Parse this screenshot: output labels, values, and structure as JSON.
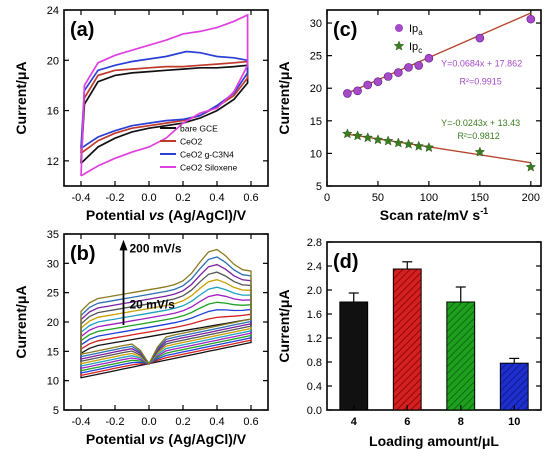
{
  "chart_data": [
    {
      "panel": "(a)",
      "type": "line",
      "xlabel_parts": [
        "Potential ",
        "vs",
        " (Ag/AgCl)/V"
      ],
      "ylabel": "Current/μA",
      "xlim": [
        -0.5,
        0.7
      ],
      "ylim": [
        10,
        24
      ],
      "xticks": [
        -0.4,
        -0.2,
        0.0,
        0.2,
        0.4,
        0.6
      ],
      "yticks": [
        12,
        16,
        20,
        24
      ],
      "legend_position": "bottom-right",
      "series": [
        {
          "name": "bare GCE",
          "color": "#111111",
          "forward": [
            [
              -0.4,
              11.8
            ],
            [
              -0.3,
              13.1
            ],
            [
              -0.2,
              13.8
            ],
            [
              -0.1,
              14.3
            ],
            [
              0.0,
              14.6
            ],
            [
              0.1,
              14.8
            ],
            [
              0.2,
              15.0
            ],
            [
              0.3,
              15.4
            ],
            [
              0.4,
              16.0
            ],
            [
              0.5,
              16.9
            ],
            [
              0.58,
              18.2
            ]
          ],
          "reverse": [
            [
              0.58,
              19.6
            ],
            [
              0.5,
              19.5
            ],
            [
              0.4,
              19.4
            ],
            [
              0.3,
              19.4
            ],
            [
              0.2,
              19.3
            ],
            [
              0.1,
              19.2
            ],
            [
              0.0,
              19.1
            ],
            [
              -0.1,
              19.0
            ],
            [
              -0.2,
              18.8
            ],
            [
              -0.3,
              18.3
            ],
            [
              -0.38,
              16.5
            ],
            [
              -0.4,
              11.8
            ]
          ]
        },
        {
          "name": "CeO2",
          "color": "#c0392b",
          "forward": [
            [
              -0.4,
              12.6
            ],
            [
              -0.3,
              13.6
            ],
            [
              -0.2,
              14.2
            ],
            [
              -0.1,
              14.6
            ],
            [
              0.0,
              14.8
            ],
            [
              0.1,
              15.0
            ],
            [
              0.2,
              15.2
            ],
            [
              0.3,
              15.6
            ],
            [
              0.4,
              16.3
            ],
            [
              0.5,
              17.2
            ],
            [
              0.58,
              18.6
            ]
          ],
          "reverse": [
            [
              0.58,
              19.9
            ],
            [
              0.5,
              19.8
            ],
            [
              0.4,
              19.7
            ],
            [
              0.3,
              19.6
            ],
            [
              0.2,
              19.5
            ],
            [
              0.1,
              19.5
            ],
            [
              0.0,
              19.4
            ],
            [
              -0.1,
              19.3
            ],
            [
              -0.2,
              19.2
            ],
            [
              -0.3,
              18.8
            ],
            [
              -0.38,
              17.0
            ],
            [
              -0.4,
              12.6
            ]
          ]
        },
        {
          "name": "CeO2 g-C3N4",
          "color": "#2b3fd6",
          "forward": [
            [
              -0.4,
              13.0
            ],
            [
              -0.3,
              13.9
            ],
            [
              -0.2,
              14.4
            ],
            [
              -0.1,
              14.8
            ],
            [
              0.0,
              15.0
            ],
            [
              0.1,
              15.2
            ],
            [
              0.2,
              15.3
            ],
            [
              0.3,
              15.6
            ],
            [
              0.4,
              16.4
            ],
            [
              0.5,
              17.4
            ],
            [
              0.58,
              19.0
            ]
          ],
          "reverse": [
            [
              0.58,
              20.0
            ],
            [
              0.5,
              20.2
            ],
            [
              0.4,
              20.3
            ],
            [
              0.3,
              20.6
            ],
            [
              0.22,
              20.7
            ],
            [
              0.1,
              20.3
            ],
            [
              0.0,
              20.1
            ],
            [
              -0.1,
              19.9
            ],
            [
              -0.2,
              19.6
            ],
            [
              -0.3,
              19.2
            ],
            [
              -0.38,
              17.6
            ],
            [
              -0.4,
              13.0
            ]
          ]
        },
        {
          "name": "CeO2 Siloxene",
          "color": "#e040e0",
          "forward": [
            [
              -0.4,
              10.8
            ],
            [
              -0.3,
              11.6
            ],
            [
              -0.2,
              12.2
            ],
            [
              -0.1,
              12.7
            ],
            [
              0.0,
              13.1
            ],
            [
              0.1,
              13.8
            ],
            [
              0.2,
              15.0
            ],
            [
              0.3,
              15.8
            ],
            [
              0.4,
              16.2
            ],
            [
              0.5,
              17.5
            ],
            [
              0.58,
              19.6
            ]
          ],
          "reverse": [
            [
              0.58,
              23.6
            ],
            [
              0.5,
              23.1
            ],
            [
              0.4,
              22.6
            ],
            [
              0.3,
              22.3
            ],
            [
              0.2,
              22.1
            ],
            [
              0.1,
              21.6
            ],
            [
              0.0,
              21.2
            ],
            [
              -0.1,
              20.8
            ],
            [
              -0.2,
              20.4
            ],
            [
              -0.3,
              19.8
            ],
            [
              -0.38,
              18.0
            ],
            [
              -0.4,
              10.8
            ]
          ]
        }
      ]
    },
    {
      "panel": "(b)",
      "type": "line",
      "xlabel_parts": [
        "Potential ",
        "vs",
        " (Ag/AgCl)/V"
      ],
      "ylabel": "Current/μA",
      "xlim": [
        -0.5,
        0.7
      ],
      "ylim": [
        5,
        35
      ],
      "xticks": [
        -0.4,
        -0.2,
        0.0,
        0.2,
        0.4,
        0.6
      ],
      "yticks": [
        5,
        10,
        15,
        20,
        25,
        30,
        35
      ],
      "annotations": [
        "200 mV/s",
        "20 mV/s"
      ],
      "scan_rates": [
        20,
        30,
        40,
        50,
        60,
        70,
        80,
        90,
        100,
        150,
        200
      ],
      "colors": [
        "#111111",
        "#d21f1f",
        "#1f3fd6",
        "#1fa01f",
        "#a020c0",
        "#1fa0c0",
        "#c8a000",
        "#555555",
        "#7a1fa0",
        "#2a6fb0",
        "#8a7a20"
      ]
    },
    {
      "panel": "(c)",
      "type": "scatter",
      "xlabel": "Scan rate/mV s",
      "xlabel_sup": "-1",
      "ylabel": "Current/μA",
      "xlim": [
        0,
        210
      ],
      "ylim": [
        5,
        32
      ],
      "xticks": [
        0,
        50,
        100,
        150,
        200
      ],
      "yticks": [
        5,
        10,
        15,
        20,
        25,
        30
      ],
      "legend_position": "top-left",
      "series": [
        {
          "name": "Ip",
          "sub": "a",
          "marker": "circle",
          "color": "#a64ac9",
          "x": [
            20,
            30,
            40,
            50,
            60,
            70,
            80,
            90,
            100,
            150,
            200
          ],
          "y": [
            19.2,
            19.6,
            20.5,
            21.0,
            21.8,
            22.4,
            23.2,
            23.5,
            24.6,
            27.7,
            30.6
          ],
          "fit": {
            "slope": 0.0684,
            "intercept": 17.862,
            "color": "#b5472f"
          },
          "equation": "Y=0.0684x + 17.862",
          "r2": "R²=0.9915"
        },
        {
          "name": "Ip",
          "sub": "c",
          "marker": "star",
          "color": "#3a7d1f",
          "x": [
            20,
            30,
            40,
            50,
            60,
            70,
            80,
            90,
            100,
            150,
            200
          ],
          "y": [
            13.0,
            12.7,
            12.4,
            12.1,
            11.9,
            11.6,
            11.4,
            11.1,
            10.9,
            10.2,
            7.9
          ],
          "fit": {
            "slope": -0.0243,
            "intercept": 13.43,
            "color": "#b5472f"
          },
          "equation": "Y=-0.0243x + 13.43",
          "r2": "R²=0.9812"
        }
      ]
    },
    {
      "panel": "(d)",
      "type": "bar",
      "xlabel": "Loading amount/μL",
      "ylabel": "Current/μA",
      "ylim": [
        0,
        2.8
      ],
      "yticks": [
        0.0,
        0.4,
        0.8,
        1.2,
        1.6,
        2.0,
        2.4,
        2.8
      ],
      "categories": [
        "4",
        "6",
        "8",
        "10"
      ],
      "values": [
        1.8,
        2.35,
        1.8,
        0.78
      ],
      "errors": [
        0.15,
        0.12,
        0.25,
        0.08
      ],
      "colors": [
        "#111111",
        "#d42020",
        "#1ea01e",
        "#1e2fd0"
      ],
      "hatched": [
        false,
        true,
        true,
        true
      ]
    }
  ]
}
